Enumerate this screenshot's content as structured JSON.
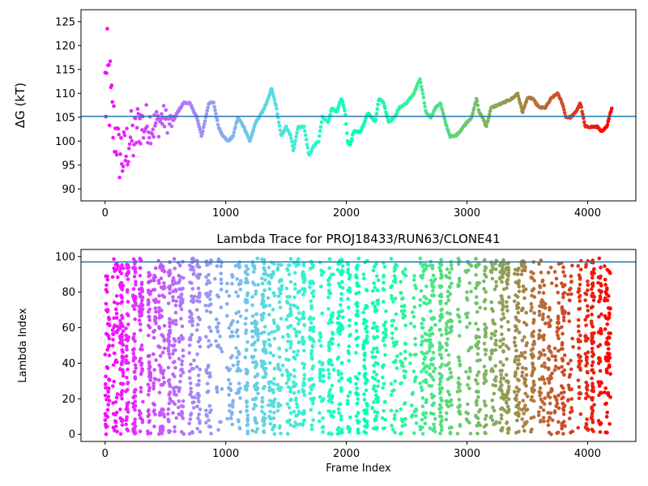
{
  "chart_data": [
    {
      "type": "scatter",
      "title": "",
      "xlabel": "",
      "ylabel": "ΔG (kT)",
      "xlim": [
        -200,
        4400
      ],
      "ylim": [
        87.5,
        127.5
      ],
      "xticks": [
        0,
        1000,
        2000,
        3000,
        4000
      ],
      "yticks": [
        90,
        95,
        100,
        105,
        110,
        115,
        120,
        125
      ],
      "hline": 105.2,
      "hline_color": "#1f77b4",
      "colormap": "rainbow",
      "n_frames": 4200,
      "trace": [
        [
          0,
          110
        ],
        [
          30,
          112
        ],
        [
          60,
          104
        ],
        [
          90,
          101
        ],
        [
          120,
          98
        ],
        [
          160,
          96
        ],
        [
          200,
          101
        ],
        [
          240,
          100
        ],
        [
          280,
          104
        ],
        [
          320,
          103
        ],
        [
          360,
          104
        ],
        [
          400,
          103
        ],
        [
          440,
          104
        ],
        [
          480,
          105
        ],
        [
          520,
          104
        ],
        [
          560,
          104
        ],
        [
          600,
          106
        ],
        [
          650,
          108
        ],
        [
          700,
          108
        ],
        [
          760,
          105
        ],
        [
          800,
          101
        ],
        [
          860,
          108
        ],
        [
          900,
          108
        ],
        [
          940,
          103
        ],
        [
          980,
          101
        ],
        [
          1020,
          100
        ],
        [
          1060,
          101
        ],
        [
          1100,
          105
        ],
        [
          1150,
          103
        ],
        [
          1200,
          100
        ],
        [
          1250,
          104
        ],
        [
          1300,
          106
        ],
        [
          1340,
          108
        ],
        [
          1380,
          111
        ],
        [
          1420,
          107
        ],
        [
          1460,
          101
        ],
        [
          1500,
          103
        ],
        [
          1540,
          101
        ],
        [
          1560,
          98
        ],
        [
          1600,
          103
        ],
        [
          1650,
          103
        ],
        [
          1690,
          97
        ],
        [
          1730,
          99
        ],
        [
          1770,
          100
        ],
        [
          1800,
          105
        ],
        [
          1850,
          104
        ],
        [
          1880,
          107
        ],
        [
          1920,
          106
        ],
        [
          1960,
          109
        ],
        [
          1990,
          106
        ],
        [
          2010,
          100
        ],
        [
          2030,
          99
        ],
        [
          2060,
          102
        ],
        [
          2120,
          102
        ],
        [
          2180,
          106
        ],
        [
          2240,
          104
        ],
        [
          2270,
          109
        ],
        [
          2310,
          108
        ],
        [
          2350,
          104
        ],
        [
          2400,
          105
        ],
        [
          2440,
          107
        ],
        [
          2500,
          108
        ],
        [
          2560,
          110
        ],
        [
          2610,
          113
        ],
        [
          2640,
          109
        ],
        [
          2660,
          106
        ],
        [
          2700,
          105
        ],
        [
          2740,
          107
        ],
        [
          2780,
          108
        ],
        [
          2820,
          104
        ],
        [
          2860,
          101
        ],
        [
          2900,
          101
        ],
        [
          2940,
          102
        ],
        [
          3000,
          104
        ],
        [
          3040,
          105
        ],
        [
          3060,
          107
        ],
        [
          3080,
          109
        ],
        [
          3100,
          106
        ],
        [
          3130,
          105
        ],
        [
          3160,
          103
        ],
        [
          3200,
          107
        ],
        [
          3300,
          108
        ],
        [
          3380,
          109
        ],
        [
          3420,
          110
        ],
        [
          3460,
          106
        ],
        [
          3500,
          109
        ],
        [
          3540,
          109
        ],
        [
          3600,
          107
        ],
        [
          3650,
          107
        ],
        [
          3700,
          109
        ],
        [
          3750,
          110
        ],
        [
          3790,
          108
        ],
        [
          3820,
          105
        ],
        [
          3860,
          105
        ],
        [
          3900,
          106
        ],
        [
          3940,
          108
        ],
        [
          3980,
          103
        ],
        [
          4040,
          103
        ],
        [
          4080,
          103
        ],
        [
          4120,
          102
        ],
        [
          4160,
          103
        ],
        [
          4200,
          107
        ]
      ]
    },
    {
      "type": "scatter",
      "title": "Lambda Trace for PROJ18433/RUN63/CLONE41",
      "xlabel": "Frame Index",
      "ylabel": "Lambda Index",
      "xlim": [
        -200,
        4400
      ],
      "ylim": [
        -4,
        104
      ],
      "xticks": [
        0,
        1000,
        2000,
        3000,
        4000
      ],
      "yticks": [
        0,
        20,
        40,
        60,
        80,
        100
      ],
      "hline": 97,
      "hline_color": "#1f77b4",
      "colormap": "rainbow",
      "n_frames": 4200,
      "lambda_min": 0,
      "lambda_max": 99
    }
  ]
}
